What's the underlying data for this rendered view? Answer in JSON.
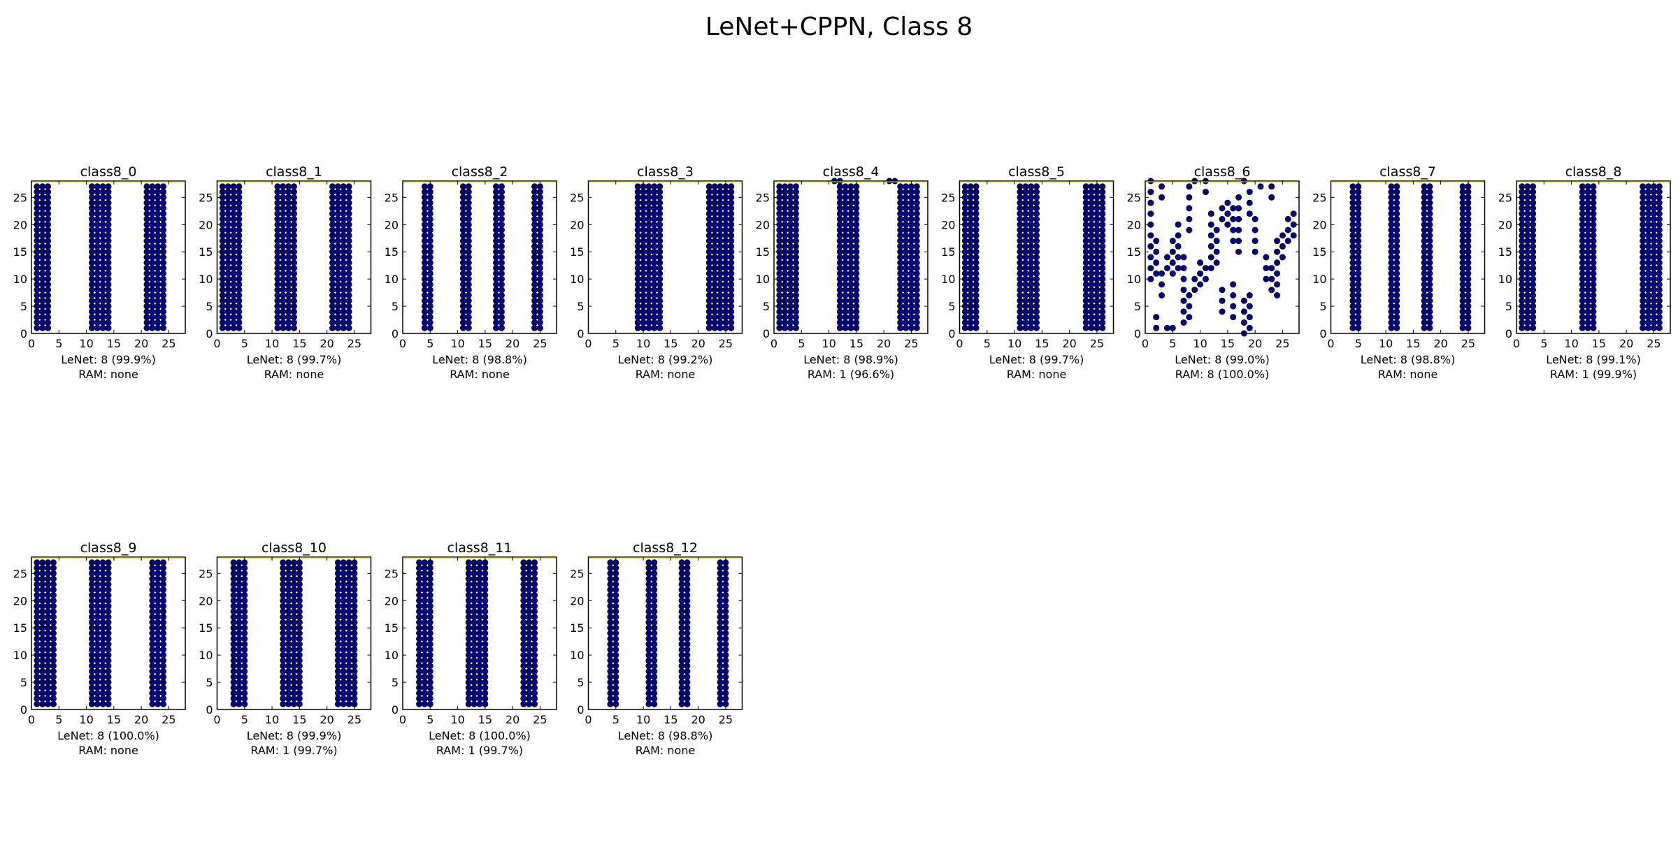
{
  "figure": {
    "title": "LeNet+CPPN, Class 8",
    "marker_color": "#000080",
    "frame_color": "#000000",
    "edge_color": "#c8c800"
  },
  "chart_data": [
    {
      "type": "scatter",
      "title": "class8_0",
      "caption": [
        "LeNet: 8 (99.9%)",
        "RAM: none"
      ],
      "xlim": [
        0,
        28
      ],
      "ylim": [
        0,
        28
      ],
      "xticks": [
        0,
        5,
        10,
        15,
        20,
        25
      ],
      "yticks": [
        0,
        5,
        10,
        15,
        20,
        25
      ],
      "x_columns": [
        1,
        2,
        3,
        11,
        12,
        13,
        14,
        21,
        22,
        23,
        24
      ],
      "y_range": [
        1,
        27
      ],
      "extra_points": []
    },
    {
      "type": "scatter",
      "title": "class8_1",
      "caption": [
        "LeNet: 8 (99.7%)",
        "RAM: none"
      ],
      "xlim": [
        0,
        28
      ],
      "ylim": [
        0,
        28
      ],
      "xticks": [
        0,
        5,
        10,
        15,
        20,
        25
      ],
      "yticks": [
        0,
        5,
        10,
        15,
        20,
        25
      ],
      "x_columns": [
        1,
        2,
        3,
        4,
        11,
        12,
        13,
        14,
        21,
        22,
        23,
        24
      ],
      "y_range": [
        1,
        27
      ],
      "extra_points": []
    },
    {
      "type": "scatter",
      "title": "class8_2",
      "caption": [
        "LeNet: 8 (98.8%)",
        "RAM: none"
      ],
      "xlim": [
        0,
        28
      ],
      "ylim": [
        0,
        28
      ],
      "xticks": [
        0,
        5,
        10,
        15,
        20,
        25
      ],
      "yticks": [
        0,
        5,
        10,
        15,
        20,
        25
      ],
      "x_columns": [
        4,
        5,
        11,
        12,
        17,
        18,
        24,
        25
      ],
      "y_range": [
        1,
        27
      ],
      "extra_points": []
    },
    {
      "type": "scatter",
      "title": "class8_3",
      "caption": [
        "LeNet: 8 (99.2%)",
        "RAM: none"
      ],
      "xlim": [
        0,
        28
      ],
      "ylim": [
        0,
        28
      ],
      "xticks": [
        0,
        5,
        10,
        15,
        20,
        25
      ],
      "yticks": [
        0,
        5,
        10,
        15,
        20,
        25
      ],
      "x_columns": [
        9,
        10,
        11,
        12,
        13,
        22,
        23,
        24,
        25,
        26
      ],
      "y_range": [
        1,
        27
      ],
      "extra_points": []
    },
    {
      "type": "scatter",
      "title": "class8_4",
      "caption": [
        "LeNet: 8 (98.9%)",
        "RAM: 1 (96.6%)"
      ],
      "xlim": [
        0,
        28
      ],
      "ylim": [
        0,
        28
      ],
      "xticks": [
        0,
        5,
        10,
        15,
        20,
        25
      ],
      "yticks": [
        0,
        5,
        10,
        15,
        20,
        25
      ],
      "x_columns": [
        1,
        2,
        3,
        4,
        12,
        13,
        14,
        15,
        23,
        24,
        25,
        26
      ],
      "y_range": [
        1,
        27
      ],
      "extra_points": [
        [
          11,
          28
        ],
        [
          12,
          28
        ],
        [
          21,
          28
        ],
        [
          22,
          28
        ]
      ]
    },
    {
      "type": "scatter",
      "title": "class8_5",
      "caption": [
        "LeNet: 8 (99.7%)",
        "RAM: none"
      ],
      "xlim": [
        0,
        28
      ],
      "ylim": [
        0,
        28
      ],
      "xticks": [
        0,
        5,
        10,
        15,
        20,
        25
      ],
      "yticks": [
        0,
        5,
        10,
        15,
        20,
        25
      ],
      "x_columns": [
        1,
        2,
        3,
        11,
        12,
        13,
        14,
        23,
        24,
        25,
        26
      ],
      "y_range": [
        1,
        27
      ],
      "extra_points": []
    },
    {
      "type": "scatter",
      "title": "class8_6",
      "caption": [
        "LeNet: 8 (99.0%)",
        "RAM: 8 (100.0%)"
      ],
      "xlim": [
        0,
        28
      ],
      "ylim": [
        0,
        28
      ],
      "xticks": [
        0,
        5,
        10,
        15,
        20,
        25
      ],
      "yticks": [
        0,
        5,
        10,
        15,
        20,
        25
      ],
      "x_columns": [],
      "y_range": [
        1,
        27
      ],
      "extra_points": [
        [
          1,
          10
        ],
        [
          1,
          12
        ],
        [
          1,
          14
        ],
        [
          1,
          16
        ],
        [
          1,
          18
        ],
        [
          1,
          20
        ],
        [
          1,
          22
        ],
        [
          1,
          24
        ],
        [
          1,
          26
        ],
        [
          1,
          28
        ],
        [
          2,
          11
        ],
        [
          2,
          13
        ],
        [
          2,
          15
        ],
        [
          2,
          17
        ],
        [
          2,
          1
        ],
        [
          2,
          3
        ],
        [
          3,
          7
        ],
        [
          3,
          9
        ],
        [
          3,
          11
        ],
        [
          3,
          25
        ],
        [
          3,
          27
        ],
        [
          4,
          1
        ],
        [
          4,
          12
        ],
        [
          4,
          14
        ],
        [
          5,
          1
        ],
        [
          5,
          11
        ],
        [
          5,
          13
        ],
        [
          5,
          15
        ],
        [
          5,
          17
        ],
        [
          6,
          12
        ],
        [
          6,
          14
        ],
        [
          6,
          16
        ],
        [
          6,
          18
        ],
        [
          6,
          20
        ],
        [
          7,
          2
        ],
        [
          7,
          4
        ],
        [
          7,
          6
        ],
        [
          7,
          8
        ],
        [
          7,
          10
        ],
        [
          7,
          12
        ],
        [
          7,
          14
        ],
        [
          8,
          3
        ],
        [
          8,
          5
        ],
        [
          8,
          7
        ],
        [
          8,
          19
        ],
        [
          8,
          21
        ],
        [
          8,
          23
        ],
        [
          8,
          25
        ],
        [
          8,
          27
        ],
        [
          9,
          8
        ],
        [
          9,
          10
        ],
        [
          9,
          28
        ],
        [
          10,
          9
        ],
        [
          10,
          11
        ],
        [
          10,
          13
        ],
        [
          11,
          10
        ],
        [
          11,
          12
        ],
        [
          11,
          26
        ],
        [
          11,
          28
        ],
        [
          12,
          12
        ],
        [
          12,
          14
        ],
        [
          12,
          16
        ],
        [
          12,
          18
        ],
        [
          12,
          20
        ],
        [
          12,
          22
        ],
        [
          13,
          13
        ],
        [
          13,
          15
        ],
        [
          13,
          17
        ],
        [
          13,
          19
        ],
        [
          14,
          4
        ],
        [
          14,
          6
        ],
        [
          14,
          8
        ],
        [
          14,
          21
        ],
        [
          14,
          23
        ],
        [
          15,
          20
        ],
        [
          15,
          22
        ],
        [
          15,
          24
        ],
        [
          16,
          3
        ],
        [
          16,
          5
        ],
        [
          16,
          7
        ],
        [
          16,
          9
        ],
        [
          16,
          17
        ],
        [
          16,
          19
        ],
        [
          16,
          21
        ],
        [
          16,
          23
        ],
        [
          17,
          15
        ],
        [
          17,
          17
        ],
        [
          17,
          19
        ],
        [
          17,
          21
        ],
        [
          17,
          23
        ],
        [
          17,
          25
        ],
        [
          18,
          0
        ],
        [
          18,
          2
        ],
        [
          18,
          4
        ],
        [
          18,
          6
        ],
        [
          18,
          28
        ],
        [
          19,
          1
        ],
        [
          19,
          3
        ],
        [
          19,
          5
        ],
        [
          19,
          7
        ],
        [
          19,
          22
        ],
        [
          19,
          24
        ],
        [
          19,
          26
        ],
        [
          20,
          15
        ],
        [
          20,
          17
        ],
        [
          20,
          19
        ],
        [
          20,
          21
        ],
        [
          21,
          27
        ],
        [
          22,
          10
        ],
        [
          22,
          12
        ],
        [
          22,
          14
        ],
        [
          23,
          8
        ],
        [
          23,
          10
        ],
        [
          23,
          12
        ],
        [
          23,
          25
        ],
        [
          23,
          27
        ],
        [
          24,
          7
        ],
        [
          24,
          9
        ],
        [
          24,
          11
        ],
        [
          24,
          13
        ],
        [
          24,
          15
        ],
        [
          24,
          17
        ],
        [
          25,
          14
        ],
        [
          25,
          16
        ],
        [
          25,
          18
        ],
        [
          26,
          17
        ],
        [
          26,
          19
        ],
        [
          26,
          21
        ],
        [
          27,
          18
        ],
        [
          27,
          20
        ],
        [
          27,
          22
        ]
      ]
    },
    {
      "type": "scatter",
      "title": "class8_7",
      "caption": [
        "LeNet: 8 (98.8%)",
        "RAM: none"
      ],
      "xlim": [
        0,
        28
      ],
      "ylim": [
        0,
        28
      ],
      "xticks": [
        0,
        5,
        10,
        15,
        20,
        25
      ],
      "yticks": [
        0,
        5,
        10,
        15,
        20,
        25
      ],
      "x_columns": [
        4,
        5,
        11,
        12,
        17,
        18,
        24,
        25
      ],
      "y_range": [
        1,
        27
      ],
      "extra_points": []
    },
    {
      "type": "scatter",
      "title": "class8_8",
      "caption": [
        "LeNet: 8 (99.1%)",
        "RAM: 1 (99.9%)"
      ],
      "xlim": [
        0,
        28
      ],
      "ylim": [
        0,
        28
      ],
      "xticks": [
        0,
        5,
        10,
        15,
        20,
        25
      ],
      "yticks": [
        0,
        5,
        10,
        15,
        20,
        25
      ],
      "x_columns": [
        1,
        2,
        3,
        12,
        13,
        14,
        23,
        24,
        25,
        26
      ],
      "y_range": [
        1,
        27
      ],
      "extra_points": []
    },
    {
      "type": "scatter",
      "title": "class8_9",
      "caption": [
        "LeNet: 8 (100.0%)",
        "RAM: none"
      ],
      "xlim": [
        0,
        28
      ],
      "ylim": [
        0,
        28
      ],
      "xticks": [
        0,
        5,
        10,
        15,
        20,
        25
      ],
      "yticks": [
        0,
        5,
        10,
        15,
        20,
        25
      ],
      "x_columns": [
        1,
        2,
        3,
        4,
        11,
        12,
        13,
        14,
        22,
        23,
        24
      ],
      "y_range": [
        1,
        27
      ],
      "extra_points": []
    },
    {
      "type": "scatter",
      "title": "class8_10",
      "caption": [
        "LeNet: 8 (99.9%)",
        "RAM: 1 (99.7%)"
      ],
      "xlim": [
        0,
        28
      ],
      "ylim": [
        0,
        28
      ],
      "xticks": [
        0,
        5,
        10,
        15,
        20,
        25
      ],
      "yticks": [
        0,
        5,
        10,
        15,
        20,
        25
      ],
      "x_columns": [
        3,
        4,
        5,
        12,
        13,
        14,
        15,
        22,
        23,
        24,
        25
      ],
      "y_range": [
        1,
        27
      ],
      "extra_points": []
    },
    {
      "type": "scatter",
      "title": "class8_11",
      "caption": [
        "LeNet: 8 (100.0%)",
        "RAM: 1 (99.7%)"
      ],
      "xlim": [
        0,
        28
      ],
      "ylim": [
        0,
        28
      ],
      "xticks": [
        0,
        5,
        10,
        15,
        20,
        25
      ],
      "yticks": [
        0,
        5,
        10,
        15,
        20,
        25
      ],
      "x_columns": [
        3,
        4,
        5,
        12,
        13,
        14,
        15,
        22,
        23,
        24
      ],
      "y_range": [
        1,
        27
      ],
      "extra_points": []
    },
    {
      "type": "scatter",
      "title": "class8_12",
      "caption": [
        "LeNet: 8 (98.8%)",
        "RAM: none"
      ],
      "xlim": [
        0,
        28
      ],
      "ylim": [
        0,
        28
      ],
      "xticks": [
        0,
        5,
        10,
        15,
        20,
        25
      ],
      "yticks": [
        0,
        5,
        10,
        15,
        20,
        25
      ],
      "x_columns": [
        4,
        5,
        11,
        12,
        17,
        18,
        24,
        25
      ],
      "y_range": [
        1,
        27
      ],
      "extra_points": []
    }
  ]
}
